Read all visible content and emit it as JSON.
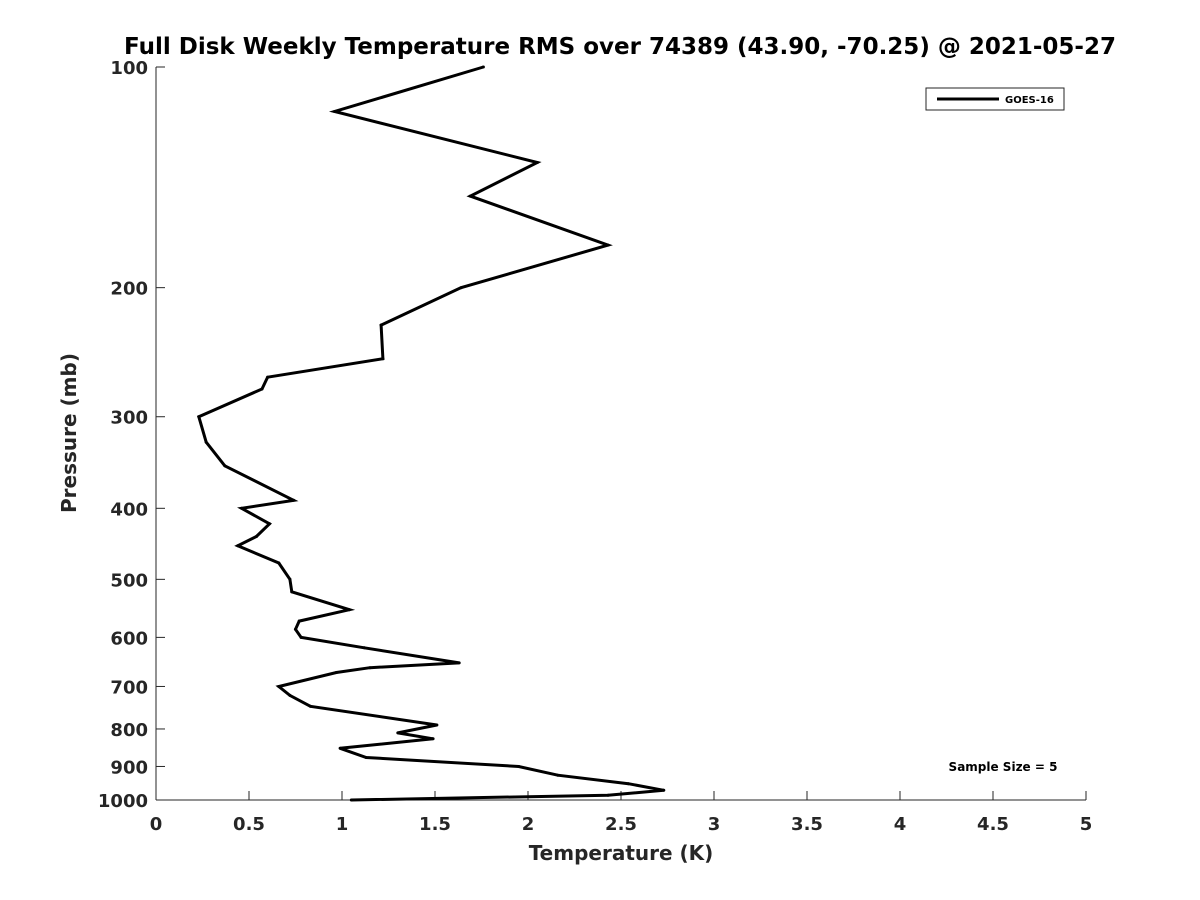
{
  "chart_data": {
    "type": "line",
    "title": "Full Disk Weekly Temperature RMS over 74389 (43.90, -70.25) @ 2021-05-27",
    "xlabel": "Temperature (K)",
    "ylabel": "Pressure (mb)",
    "xlim": [
      0,
      5
    ],
    "ylim": [
      1000,
      100
    ],
    "y_scale": "log",
    "y_reversed": true,
    "x_ticks": [
      "0",
      "0.5",
      "1",
      "1.5",
      "2",
      "2.5",
      "3",
      "3.5",
      "4",
      "4.5",
      "5"
    ],
    "y_ticks": [
      "100",
      "200",
      "300",
      "400",
      "500",
      "600",
      "700",
      "800",
      "900",
      "1000"
    ],
    "grid": false,
    "legend": {
      "position": "top-right",
      "entries": [
        "GOES-16"
      ]
    },
    "annotation": "Sample Size = 5",
    "series": [
      {
        "name": "GOES-16",
        "color": "#000000",
        "points": [
          [
            1.76,
            100
          ],
          [
            0.96,
            115
          ],
          [
            2.05,
            135
          ],
          [
            1.69,
            150
          ],
          [
            2.43,
            175
          ],
          [
            1.64,
            200
          ],
          [
            1.21,
            225
          ],
          [
            1.22,
            250
          ],
          [
            0.6,
            265
          ],
          [
            0.57,
            275
          ],
          [
            0.23,
            300
          ],
          [
            0.27,
            325
          ],
          [
            0.37,
            350
          ],
          [
            0.74,
            390
          ],
          [
            0.46,
            400
          ],
          [
            0.61,
            420
          ],
          [
            0.54,
            437
          ],
          [
            0.44,
            450
          ],
          [
            0.66,
            475
          ],
          [
            0.72,
            500
          ],
          [
            0.73,
            520
          ],
          [
            1.04,
            550
          ],
          [
            0.77,
            570
          ],
          [
            0.75,
            585
          ],
          [
            0.78,
            600
          ],
          [
            1.12,
            620
          ],
          [
            1.63,
            650
          ],
          [
            1.15,
            660
          ],
          [
            0.97,
            670
          ],
          [
            0.66,
            700
          ],
          [
            0.72,
            720
          ],
          [
            0.83,
            745
          ],
          [
            1.51,
            790
          ],
          [
            1.3,
            810
          ],
          [
            1.49,
            825
          ],
          [
            0.99,
            850
          ],
          [
            1.13,
            875
          ],
          [
            1.95,
            900
          ],
          [
            2.16,
            925
          ],
          [
            2.54,
            950
          ],
          [
            2.73,
            970
          ],
          [
            2.43,
            985
          ],
          [
            1.05,
            1000
          ]
        ]
      }
    ]
  }
}
